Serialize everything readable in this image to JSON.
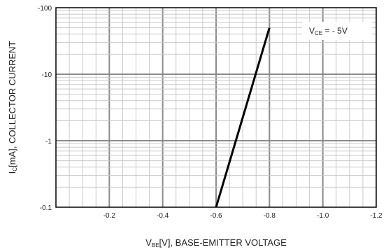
{
  "chart_data": {
    "type": "line",
    "title": "",
    "xlabel": {
      "prefix": "V",
      "sub": "BE",
      "rest": "[V], BASE-EMITTER VOLTAGE"
    },
    "ylabel": {
      "prefix": "I",
      "sub": "C",
      "rest": "[mA], COLLECTOR CURRENT"
    },
    "xlim": [
      0,
      -1.2
    ],
    "ylim": [
      -0.1,
      -100
    ],
    "yscale": "log",
    "grid": true,
    "x_ticks": [
      -0.2,
      -0.4,
      -0.6,
      -0.8,
      -1.0,
      -1.2
    ],
    "x_tick_labels": [
      "-0.2",
      "-0.4",
      "-0.6",
      "-0.8",
      "-1.0",
      "-1.2"
    ],
    "y_ticks": [
      -0.1,
      -1,
      -10,
      -100
    ],
    "y_tick_labels": [
      "-0.1",
      "-1",
      "-10",
      "-100"
    ],
    "legend": {
      "position": "top-right",
      "prefix": "V",
      "sub": "CE",
      "rest": " = - 5V"
    },
    "series": [
      {
        "x": [
          -0.6,
          -0.8
        ],
        "y": [
          -0.1,
          -50
        ],
        "color": "#000000"
      }
    ]
  }
}
